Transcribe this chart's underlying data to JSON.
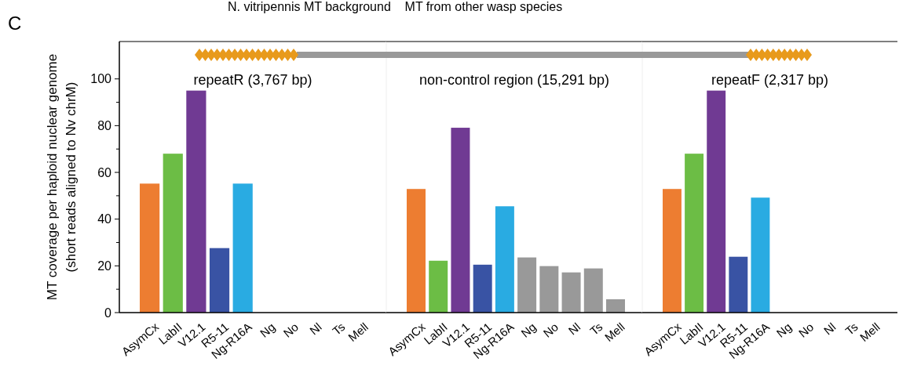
{
  "chart_data": [
    {
      "type": "bar",
      "title": "repeatR (3,767 bp)",
      "ylabel": "MT coverage per haploid nuclear genome\n(short reads aligned to Nv chrM)",
      "annotations": [
        "C",
        "N. vitripennis MT background    MT from other wasp species"
      ],
      "categories": [
        "AsymCx",
        "LabII",
        "V12.1",
        "R5-11",
        "Ng-R16A",
        "Ng",
        "No",
        "Nl",
        "Ts",
        "Mell"
      ],
      "values": [
        55.2,
        68,
        95,
        27.6,
        55.2,
        0,
        0,
        0,
        0,
        0
      ],
      "colors": [
        "#ed7d31",
        "#6cbd45",
        "#703a93",
        "#3953a4",
        "#29abe2",
        "#999999",
        "#999999",
        "#999999",
        "#999999",
        "#999999"
      ],
      "ylim": [
        0,
        116
      ],
      "yticks": [
        0,
        {
          "value": 10,
          "label": null
        },
        20,
        {
          "value": 30,
          "label": null
        },
        40,
        {
          "value": 50,
          "label": null
        },
        60,
        {
          "value": 70,
          "label": null
        },
        80,
        {
          "value": 90,
          "label": null
        },
        100
      ],
      "grid": false
    },
    {
      "type": "bar",
      "title": "non-control region (15,291 bp)",
      "categories": [
        "AsymCx",
        "LabII",
        "V12.1",
        "R5-11",
        "Ng-R16A",
        "Ng",
        "No",
        "Nl",
        "Ts",
        "Mell"
      ],
      "values": [
        52.9,
        22.2,
        79.1,
        20.5,
        45.5,
        23.6,
        19.9,
        17.2,
        18.9,
        5.7
      ],
      "colors": [
        "#ed7d31",
        "#6cbd45",
        "#703a93",
        "#3953a4",
        "#29abe2",
        "#999999",
        "#999999",
        "#999999",
        "#999999",
        "#999999"
      ],
      "ylim": [
        0,
        116
      ],
      "tick_labels": "x",
      "grid": false
    },
    {
      "type": "bar",
      "title": "repeatF (2,317 bp)",
      "categories": [
        "AsymCx",
        "LabII",
        "V12.1",
        "R5-11",
        "Ng-R16A",
        "Ng",
        "No",
        "Nl",
        "Ts",
        "Mell"
      ],
      "values": [
        52.9,
        68,
        95,
        23.9,
        49.2,
        0,
        0,
        0,
        0,
        0
      ],
      "colors": [
        "#ed7d31",
        "#6cbd45",
        "#703a93",
        "#3953a4",
        "#29abe2",
        "#999999",
        "#999999",
        "#999999",
        "#999999",
        "#999999"
      ],
      "ylim": [
        0,
        116
      ],
      "tick_labels": "x",
      "grid": false
    }
  ]
}
